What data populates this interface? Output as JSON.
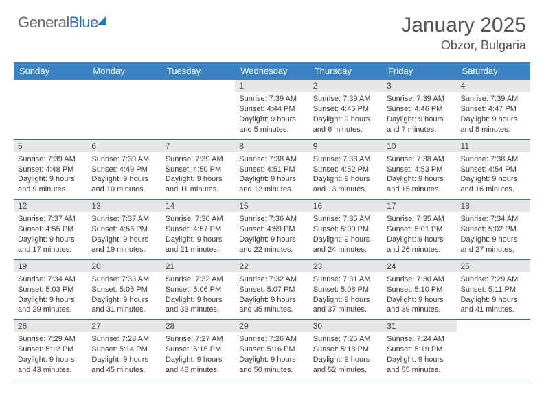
{
  "logo": {
    "word1": "General",
    "word2": "Blue"
  },
  "title": "January 2025",
  "location": "Obzor, Bulgaria",
  "colors": {
    "header_bg": "#3b82c4",
    "header_text": "#ffffff",
    "daynum_bg": "#e6e6e6",
    "row_border": "#3b6ea0",
    "body_text": "#3a3a3a",
    "title_text": "#555555",
    "logo_gray": "#6a6a6a",
    "logo_blue": "#2d6fb5",
    "page_bg": "#ffffff"
  },
  "weekdays": [
    "Sunday",
    "Monday",
    "Tuesday",
    "Wednesday",
    "Thursday",
    "Friday",
    "Saturday"
  ],
  "weeks": [
    [
      {
        "day": "",
        "sunrise": "",
        "sunset": "",
        "daylight": ""
      },
      {
        "day": "",
        "sunrise": "",
        "sunset": "",
        "daylight": ""
      },
      {
        "day": "",
        "sunrise": "",
        "sunset": "",
        "daylight": ""
      },
      {
        "day": "1",
        "sunrise": "Sunrise: 7:39 AM",
        "sunset": "Sunset: 4:44 PM",
        "daylight": "Daylight: 9 hours and 5 minutes."
      },
      {
        "day": "2",
        "sunrise": "Sunrise: 7:39 AM",
        "sunset": "Sunset: 4:45 PM",
        "daylight": "Daylight: 9 hours and 6 minutes."
      },
      {
        "day": "3",
        "sunrise": "Sunrise: 7:39 AM",
        "sunset": "Sunset: 4:46 PM",
        "daylight": "Daylight: 9 hours and 7 minutes."
      },
      {
        "day": "4",
        "sunrise": "Sunrise: 7:39 AM",
        "sunset": "Sunset: 4:47 PM",
        "daylight": "Daylight: 9 hours and 8 minutes."
      }
    ],
    [
      {
        "day": "5",
        "sunrise": "Sunrise: 7:39 AM",
        "sunset": "Sunset: 4:48 PM",
        "daylight": "Daylight: 9 hours and 9 minutes."
      },
      {
        "day": "6",
        "sunrise": "Sunrise: 7:39 AM",
        "sunset": "Sunset: 4:49 PM",
        "daylight": "Daylight: 9 hours and 10 minutes."
      },
      {
        "day": "7",
        "sunrise": "Sunrise: 7:39 AM",
        "sunset": "Sunset: 4:50 PM",
        "daylight": "Daylight: 9 hours and 11 minutes."
      },
      {
        "day": "8",
        "sunrise": "Sunrise: 7:38 AM",
        "sunset": "Sunset: 4:51 PM",
        "daylight": "Daylight: 9 hours and 12 minutes."
      },
      {
        "day": "9",
        "sunrise": "Sunrise: 7:38 AM",
        "sunset": "Sunset: 4:52 PM",
        "daylight": "Daylight: 9 hours and 13 minutes."
      },
      {
        "day": "10",
        "sunrise": "Sunrise: 7:38 AM",
        "sunset": "Sunset: 4:53 PM",
        "daylight": "Daylight: 9 hours and 15 minutes."
      },
      {
        "day": "11",
        "sunrise": "Sunrise: 7:38 AM",
        "sunset": "Sunset: 4:54 PM",
        "daylight": "Daylight: 9 hours and 16 minutes."
      }
    ],
    [
      {
        "day": "12",
        "sunrise": "Sunrise: 7:37 AM",
        "sunset": "Sunset: 4:55 PM",
        "daylight": "Daylight: 9 hours and 17 minutes."
      },
      {
        "day": "13",
        "sunrise": "Sunrise: 7:37 AM",
        "sunset": "Sunset: 4:56 PM",
        "daylight": "Daylight: 9 hours and 19 minutes."
      },
      {
        "day": "14",
        "sunrise": "Sunrise: 7:36 AM",
        "sunset": "Sunset: 4:57 PM",
        "daylight": "Daylight: 9 hours and 21 minutes."
      },
      {
        "day": "15",
        "sunrise": "Sunrise: 7:36 AM",
        "sunset": "Sunset: 4:59 PM",
        "daylight": "Daylight: 9 hours and 22 minutes."
      },
      {
        "day": "16",
        "sunrise": "Sunrise: 7:35 AM",
        "sunset": "Sunset: 5:00 PM",
        "daylight": "Daylight: 9 hours and 24 minutes."
      },
      {
        "day": "17",
        "sunrise": "Sunrise: 7:35 AM",
        "sunset": "Sunset: 5:01 PM",
        "daylight": "Daylight: 9 hours and 26 minutes."
      },
      {
        "day": "18",
        "sunrise": "Sunrise: 7:34 AM",
        "sunset": "Sunset: 5:02 PM",
        "daylight": "Daylight: 9 hours and 27 minutes."
      }
    ],
    [
      {
        "day": "19",
        "sunrise": "Sunrise: 7:34 AM",
        "sunset": "Sunset: 5:03 PM",
        "daylight": "Daylight: 9 hours and 29 minutes."
      },
      {
        "day": "20",
        "sunrise": "Sunrise: 7:33 AM",
        "sunset": "Sunset: 5:05 PM",
        "daylight": "Daylight: 9 hours and 31 minutes."
      },
      {
        "day": "21",
        "sunrise": "Sunrise: 7:32 AM",
        "sunset": "Sunset: 5:06 PM",
        "daylight": "Daylight: 9 hours and 33 minutes."
      },
      {
        "day": "22",
        "sunrise": "Sunrise: 7:32 AM",
        "sunset": "Sunset: 5:07 PM",
        "daylight": "Daylight: 9 hours and 35 minutes."
      },
      {
        "day": "23",
        "sunrise": "Sunrise: 7:31 AM",
        "sunset": "Sunset: 5:08 PM",
        "daylight": "Daylight: 9 hours and 37 minutes."
      },
      {
        "day": "24",
        "sunrise": "Sunrise: 7:30 AM",
        "sunset": "Sunset: 5:10 PM",
        "daylight": "Daylight: 9 hours and 39 minutes."
      },
      {
        "day": "25",
        "sunrise": "Sunrise: 7:29 AM",
        "sunset": "Sunset: 5:11 PM",
        "daylight": "Daylight: 9 hours and 41 minutes."
      }
    ],
    [
      {
        "day": "26",
        "sunrise": "Sunrise: 7:29 AM",
        "sunset": "Sunset: 5:12 PM",
        "daylight": "Daylight: 9 hours and 43 minutes."
      },
      {
        "day": "27",
        "sunrise": "Sunrise: 7:28 AM",
        "sunset": "Sunset: 5:14 PM",
        "daylight": "Daylight: 9 hours and 45 minutes."
      },
      {
        "day": "28",
        "sunrise": "Sunrise: 7:27 AM",
        "sunset": "Sunset: 5:15 PM",
        "daylight": "Daylight: 9 hours and 48 minutes."
      },
      {
        "day": "29",
        "sunrise": "Sunrise: 7:26 AM",
        "sunset": "Sunset: 5:16 PM",
        "daylight": "Daylight: 9 hours and 50 minutes."
      },
      {
        "day": "30",
        "sunrise": "Sunrise: 7:25 AM",
        "sunset": "Sunset: 5:18 PM",
        "daylight": "Daylight: 9 hours and 52 minutes."
      },
      {
        "day": "31",
        "sunrise": "Sunrise: 7:24 AM",
        "sunset": "Sunset: 5:19 PM",
        "daylight": "Daylight: 9 hours and 55 minutes."
      },
      {
        "day": "",
        "sunrise": "",
        "sunset": "",
        "daylight": ""
      }
    ]
  ]
}
